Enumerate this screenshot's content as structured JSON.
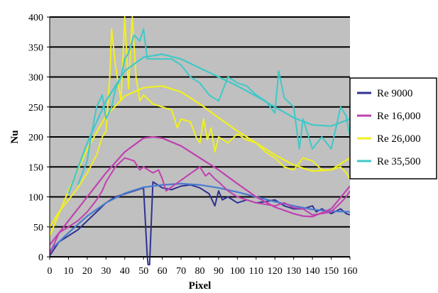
{
  "chart_data": {
    "type": "line",
    "title": "",
    "xlabel": "Pixel",
    "ylabel": "Nu",
    "xlim": [
      0,
      160
    ],
    "ylim": [
      0,
      400
    ],
    "x_ticks": [
      "0",
      "10",
      "20",
      "30",
      "40",
      "50",
      "60",
      "70",
      "80",
      "90",
      "100",
      "110",
      "120",
      "130",
      "140",
      "150",
      "160"
    ],
    "y_ticks": [
      "0",
      "50",
      "100",
      "150",
      "200",
      "250",
      "300",
      "350",
      "400"
    ],
    "grid": "horizontal",
    "legend_position": "right",
    "background_color": "#c0c0c0",
    "series": [
      {
        "name": "Re 9000",
        "color": "#2e3192",
        "fit_color": "#4a7bd0",
        "raw": [
          [
            0,
            2
          ],
          [
            5,
            25
          ],
          [
            10,
            35
          ],
          [
            15,
            45
          ],
          [
            20,
            60
          ],
          [
            25,
            75
          ],
          [
            30,
            90
          ],
          [
            35,
            100
          ],
          [
            40,
            105
          ],
          [
            45,
            110
          ],
          [
            50,
            115
          ],
          [
            52,
            0
          ],
          [
            53,
            -30
          ],
          [
            55,
            125
          ],
          [
            60,
            115
          ],
          [
            65,
            112
          ],
          [
            70,
            118
          ],
          [
            75,
            120
          ],
          [
            80,
            115
          ],
          [
            85,
            105
          ],
          [
            88,
            85
          ],
          [
            90,
            110
          ],
          [
            92,
            95
          ],
          [
            95,
            100
          ],
          [
            100,
            90
          ],
          [
            105,
            95
          ],
          [
            110,
            90
          ],
          [
            115,
            92
          ],
          [
            120,
            95
          ],
          [
            125,
            85
          ],
          [
            130,
            80
          ],
          [
            135,
            80
          ],
          [
            140,
            85
          ],
          [
            142,
            75
          ],
          [
            145,
            80
          ],
          [
            150,
            72
          ],
          [
            155,
            80
          ],
          [
            158,
            72
          ],
          [
            160,
            70
          ]
        ],
        "fit": [
          [
            0,
            10
          ],
          [
            10,
            40
          ],
          [
            20,
            68
          ],
          [
            30,
            90
          ],
          [
            40,
            106
          ],
          [
            50,
            116
          ],
          [
            60,
            120
          ],
          [
            70,
            122
          ],
          [
            80,
            120
          ],
          [
            90,
            115
          ],
          [
            100,
            108
          ],
          [
            110,
            100
          ],
          [
            120,
            92
          ],
          [
            130,
            85
          ],
          [
            140,
            79
          ],
          [
            150,
            76
          ],
          [
            160,
            75
          ]
        ]
      },
      {
        "name": "Re 16,000",
        "color": "#c040b0",
        "fit_color": "#c040b0",
        "raw": [
          [
            0,
            5
          ],
          [
            5,
            40
          ],
          [
            10,
            50
          ],
          [
            15,
            60
          ],
          [
            20,
            75
          ],
          [
            25,
            95
          ],
          [
            28,
            110
          ],
          [
            30,
            125
          ],
          [
            33,
            140
          ],
          [
            35,
            150
          ],
          [
            40,
            165
          ],
          [
            45,
            160
          ],
          [
            48,
            145
          ],
          [
            50,
            150
          ],
          [
            55,
            140
          ],
          [
            58,
            145
          ],
          [
            60,
            130
          ],
          [
            62,
            110
          ],
          [
            80,
            150
          ],
          [
            83,
            135
          ],
          [
            85,
            140
          ],
          [
            88,
            130
          ],
          [
            90,
            125
          ],
          [
            95,
            110
          ],
          [
            100,
            100
          ],
          [
            105,
            95
          ],
          [
            110,
            90
          ],
          [
            120,
            85
          ],
          [
            125,
            90
          ],
          [
            130,
            82
          ],
          [
            135,
            80
          ],
          [
            140,
            70
          ],
          [
            145,
            72
          ],
          [
            150,
            75
          ],
          [
            155,
            90
          ],
          [
            158,
            100
          ],
          [
            160,
            110
          ]
        ],
        "fit": [
          [
            0,
            20
          ],
          [
            10,
            60
          ],
          [
            20,
            100
          ],
          [
            30,
            140
          ],
          [
            40,
            175
          ],
          [
            50,
            198
          ],
          [
            55,
            200
          ],
          [
            60,
            198
          ],
          [
            70,
            185
          ],
          [
            80,
            165
          ],
          [
            90,
            145
          ],
          [
            100,
            122
          ],
          [
            110,
            100
          ],
          [
            120,
            83
          ],
          [
            130,
            72
          ],
          [
            135,
            68
          ],
          [
            140,
            67
          ],
          [
            150,
            80
          ],
          [
            160,
            118
          ]
        ]
      },
      {
        "name": "Re 26,000",
        "color": "#f0f020",
        "fit_color": "#f0f020",
        "raw": [
          [
            0,
            50
          ],
          [
            5,
            75
          ],
          [
            10,
            95
          ],
          [
            15,
            115
          ],
          [
            20,
            140
          ],
          [
            25,
            170
          ],
          [
            28,
            200
          ],
          [
            30,
            210
          ],
          [
            32,
            300
          ],
          [
            33,
            380
          ],
          [
            35,
            320
          ],
          [
            38,
            260
          ],
          [
            40,
            400
          ],
          [
            42,
            280
          ],
          [
            44,
            400
          ],
          [
            46,
            300
          ],
          [
            48,
            260
          ],
          [
            50,
            270
          ],
          [
            55,
            255
          ],
          [
            60,
            250
          ],
          [
            65,
            245
          ],
          [
            68,
            215
          ],
          [
            70,
            230
          ],
          [
            75,
            225
          ],
          [
            78,
            200
          ],
          [
            80,
            190
          ],
          [
            82,
            230
          ],
          [
            84,
            195
          ],
          [
            86,
            215
          ],
          [
            88,
            175
          ],
          [
            90,
            200
          ],
          [
            95,
            190
          ],
          [
            100,
            205
          ],
          [
            105,
            195
          ],
          [
            110,
            190
          ],
          [
            115,
            175
          ],
          [
            120,
            165
          ],
          [
            125,
            150
          ],
          [
            130,
            145
          ],
          [
            135,
            165
          ],
          [
            140,
            160
          ],
          [
            145,
            145
          ],
          [
            150,
            145
          ],
          [
            155,
            150
          ],
          [
            158,
            140
          ],
          [
            160,
            130
          ]
        ],
        "fit": [
          [
            0,
            35
          ],
          [
            10,
            110
          ],
          [
            20,
            180
          ],
          [
            30,
            235
          ],
          [
            40,
            268
          ],
          [
            50,
            282
          ],
          [
            60,
            285
          ],
          [
            70,
            275
          ],
          [
            80,
            255
          ],
          [
            90,
            232
          ],
          [
            100,
            210
          ],
          [
            110,
            190
          ],
          [
            120,
            170
          ],
          [
            130,
            153
          ],
          [
            140,
            143
          ],
          [
            150,
            145
          ],
          [
            160,
            165
          ]
        ]
      },
      {
        "name": "Re 35,500",
        "color": "#40c8c8",
        "fit_color": "#40c8c8",
        "raw": [
          [
            15,
            120
          ],
          [
            20,
            160
          ],
          [
            22,
            200
          ],
          [
            25,
            250
          ],
          [
            28,
            270
          ],
          [
            30,
            230
          ],
          [
            33,
            250
          ],
          [
            35,
            280
          ],
          [
            38,
            300
          ],
          [
            40,
            330
          ],
          [
            42,
            340
          ],
          [
            45,
            370
          ],
          [
            48,
            360
          ],
          [
            50,
            380
          ],
          [
            52,
            330
          ],
          [
            55,
            330
          ],
          [
            60,
            330
          ],
          [
            65,
            330
          ],
          [
            70,
            320
          ],
          [
            75,
            300
          ],
          [
            80,
            290
          ],
          [
            85,
            270
          ],
          [
            90,
            260
          ],
          [
            95,
            300
          ],
          [
            100,
            290
          ],
          [
            105,
            285
          ],
          [
            110,
            270
          ],
          [
            115,
            260
          ],
          [
            120,
            240
          ],
          [
            122,
            310
          ],
          [
            125,
            265
          ],
          [
            130,
            250
          ],
          [
            133,
            180
          ],
          [
            135,
            230
          ],
          [
            140,
            180
          ],
          [
            145,
            200
          ],
          [
            150,
            180
          ],
          [
            155,
            250
          ],
          [
            158,
            235
          ],
          [
            160,
            200
          ]
        ],
        "fit": [
          [
            10,
            105
          ],
          [
            20,
            190
          ],
          [
            30,
            260
          ],
          [
            40,
            310
          ],
          [
            50,
            333
          ],
          [
            60,
            338
          ],
          [
            70,
            330
          ],
          [
            80,
            315
          ],
          [
            90,
            300
          ],
          [
            100,
            285
          ],
          [
            110,
            268
          ],
          [
            120,
            250
          ],
          [
            130,
            232
          ],
          [
            140,
            220
          ],
          [
            150,
            218
          ],
          [
            160,
            230
          ]
        ]
      }
    ]
  }
}
